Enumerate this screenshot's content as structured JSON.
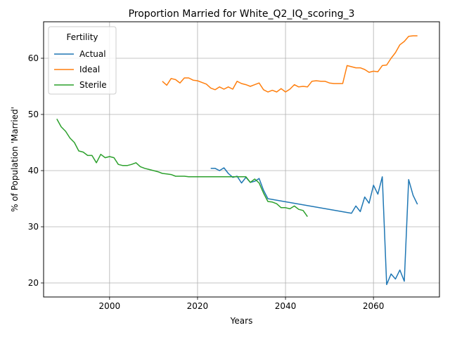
{
  "chart_data": {
    "type": "line",
    "title": "Proportion Married for White_Q2_IQ_scoring_3",
    "xlabel": "Years",
    "ylabel": "% of Population 'Married'",
    "xlim": [
      1985,
      2075
    ],
    "ylim": [
      17.5,
      66.5
    ],
    "xticks": [
      2000,
      2020,
      2040,
      2060
    ],
    "yticks": [
      20,
      30,
      40,
      50,
      60
    ],
    "grid": true,
    "legend": {
      "title": "Fertility",
      "placement": "top-left"
    },
    "series": [
      {
        "name": "Actual",
        "color": "#1f77b4",
        "points": [
          [
            2023,
            40.4
          ],
          [
            2024,
            40.4
          ],
          [
            2025,
            40.0
          ],
          [
            2026,
            40.5
          ],
          [
            2027,
            39.5
          ],
          [
            2028,
            38.8
          ],
          [
            2029,
            39.0
          ],
          [
            2030,
            37.8
          ],
          [
            2031,
            38.8
          ],
          [
            2032,
            37.9
          ],
          [
            2033,
            38.1
          ],
          [
            2034,
            38.6
          ],
          [
            2035,
            36.5
          ],
          [
            2036,
            35.0
          ],
          [
            2055,
            32.4
          ],
          [
            2056,
            33.7
          ],
          [
            2057,
            32.7
          ],
          [
            2058,
            35.3
          ],
          [
            2059,
            34.2
          ],
          [
            2060,
            37.4
          ],
          [
            2061,
            35.8
          ],
          [
            2062,
            38.9
          ],
          [
            2063,
            19.7
          ],
          [
            2064,
            21.6
          ],
          [
            2065,
            20.7
          ],
          [
            2066,
            22.3
          ],
          [
            2067,
            20.3
          ],
          [
            2068,
            38.4
          ],
          [
            2069,
            35.6
          ],
          [
            2070,
            34.0
          ]
        ]
      },
      {
        "name": "Ideal",
        "color": "#ff7f0e",
        "points": [
          [
            2012,
            55.9
          ],
          [
            2013,
            55.2
          ],
          [
            2014,
            56.4
          ],
          [
            2015,
            56.2
          ],
          [
            2016,
            55.6
          ],
          [
            2017,
            56.5
          ],
          [
            2018,
            56.5
          ],
          [
            2019,
            56.1
          ],
          [
            2020,
            56.0
          ],
          [
            2021,
            55.7
          ],
          [
            2022,
            55.4
          ],
          [
            2023,
            54.7
          ],
          [
            2024,
            54.4
          ],
          [
            2025,
            54.9
          ],
          [
            2026,
            54.5
          ],
          [
            2027,
            54.9
          ],
          [
            2028,
            54.5
          ],
          [
            2029,
            55.9
          ],
          [
            2030,
            55.5
          ],
          [
            2031,
            55.3
          ],
          [
            2032,
            55.0
          ],
          [
            2033,
            55.3
          ],
          [
            2034,
            55.6
          ],
          [
            2035,
            54.4
          ],
          [
            2036,
            54.0
          ],
          [
            2037,
            54.3
          ],
          [
            2038,
            54.0
          ],
          [
            2039,
            54.6
          ],
          [
            2040,
            54.0
          ],
          [
            2041,
            54.5
          ],
          [
            2042,
            55.3
          ],
          [
            2043,
            54.9
          ],
          [
            2044,
            55.0
          ],
          [
            2045,
            54.9
          ],
          [
            2046,
            55.9
          ],
          [
            2047,
            56.0
          ],
          [
            2048,
            55.9
          ],
          [
            2049,
            55.9
          ],
          [
            2050,
            55.6
          ],
          [
            2051,
            55.5
          ],
          [
            2052,
            55.5
          ],
          [
            2053,
            55.5
          ],
          [
            2054,
            58.7
          ],
          [
            2055,
            58.5
          ],
          [
            2056,
            58.3
          ],
          [
            2057,
            58.3
          ],
          [
            2058,
            58.0
          ],
          [
            2059,
            57.5
          ],
          [
            2060,
            57.7
          ],
          [
            2061,
            57.6
          ],
          [
            2062,
            58.7
          ],
          [
            2063,
            58.8
          ],
          [
            2064,
            60.0
          ],
          [
            2065,
            61.0
          ],
          [
            2066,
            62.4
          ],
          [
            2067,
            63.0
          ],
          [
            2068,
            63.9
          ],
          [
            2069,
            64.0
          ],
          [
            2070,
            64.0
          ]
        ]
      },
      {
        "name": "Sterile",
        "color": "#2ca02c",
        "points": [
          [
            1988,
            49.2
          ],
          [
            1989,
            47.8
          ],
          [
            1990,
            47.0
          ],
          [
            1991,
            45.8
          ],
          [
            1992,
            45.0
          ],
          [
            1993,
            43.5
          ],
          [
            1994,
            43.3
          ],
          [
            1995,
            42.7
          ],
          [
            1996,
            42.7
          ],
          [
            1997,
            41.4
          ],
          [
            1998,
            42.9
          ],
          [
            1999,
            42.3
          ],
          [
            2000,
            42.5
          ],
          [
            2001,
            42.3
          ],
          [
            2002,
            41.1
          ],
          [
            2003,
            40.9
          ],
          [
            2004,
            40.9
          ],
          [
            2005,
            41.1
          ],
          [
            2006,
            41.4
          ],
          [
            2007,
            40.7
          ],
          [
            2008,
            40.4
          ],
          [
            2009,
            40.2
          ],
          [
            2010,
            40.0
          ],
          [
            2011,
            39.8
          ],
          [
            2012,
            39.5
          ],
          [
            2013,
            39.4
          ],
          [
            2014,
            39.3
          ],
          [
            2015,
            39.0
          ],
          [
            2016,
            39.0
          ],
          [
            2017,
            39.0
          ],
          [
            2018,
            38.9
          ],
          [
            2019,
            38.9
          ],
          [
            2020,
            38.9
          ],
          [
            2021,
            38.9
          ],
          [
            2022,
            38.9
          ],
          [
            2023,
            38.9
          ],
          [
            2024,
            38.9
          ],
          [
            2025,
            38.9
          ],
          [
            2026,
            38.9
          ],
          [
            2027,
            38.9
          ],
          [
            2028,
            38.9
          ],
          [
            2029,
            38.9
          ],
          [
            2030,
            38.9
          ],
          [
            2031,
            38.9
          ],
          [
            2032,
            37.9
          ],
          [
            2033,
            38.5
          ],
          [
            2034,
            37.8
          ],
          [
            2035,
            36.0
          ],
          [
            2036,
            34.5
          ],
          [
            2037,
            34.4
          ],
          [
            2038,
            34.1
          ],
          [
            2039,
            33.4
          ],
          [
            2040,
            33.4
          ],
          [
            2041,
            33.2
          ],
          [
            2042,
            33.7
          ],
          [
            2043,
            33.1
          ],
          [
            2044,
            32.9
          ],
          [
            2045,
            31.8
          ]
        ]
      }
    ]
  }
}
